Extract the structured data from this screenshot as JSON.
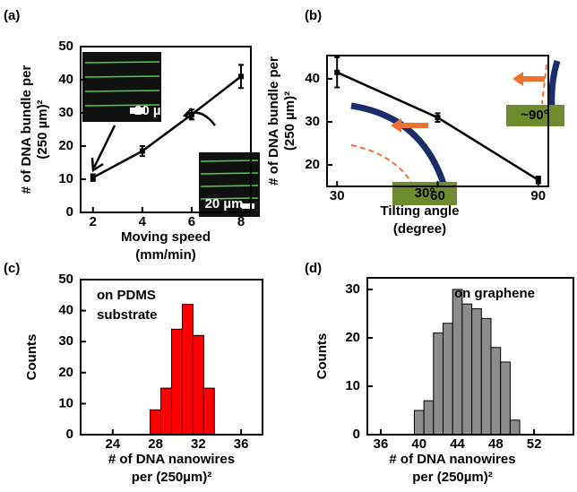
{
  "chart_data": [
    {
      "type": "line",
      "panel": "(a)",
      "ylabel": [
        "# of DNA bundle per",
        "(250 µm)²"
      ],
      "xlabel": [
        "Moving speed",
        "(mm/min)"
      ],
      "x": [
        2,
        4,
        6,
        8
      ],
      "values": [
        10.5,
        18.5,
        29.5,
        41
      ],
      "errors": [
        1,
        1.5,
        1.5,
        3.5
      ],
      "xlim": [
        1.5,
        8.4
      ],
      "xticks": [
        2,
        4,
        6,
        8
      ],
      "ylim": [
        0,
        50
      ],
      "yticks": [
        0,
        10,
        20,
        30,
        40,
        50
      ],
      "annotations": [
        "20 µm",
        "20 µm"
      ],
      "color": "#000000"
    },
    {
      "type": "line",
      "panel": "(b)",
      "ylabel": [
        "# of DNA bundle per",
        "(250 µm)²"
      ],
      "xlabel": [
        "Tilting angle",
        "(degree)"
      ],
      "x": [
        30,
        60,
        90
      ],
      "values": [
        41.5,
        31,
        16.5
      ],
      "errors": [
        3.5,
        1,
        0.8
      ],
      "xlim": [
        27,
        93
      ],
      "xticks": [
        30,
        60,
        90
      ],
      "ylim": [
        15,
        45.4
      ],
      "yticks": [
        20,
        30,
        40
      ],
      "annotations": [
        "30°",
        "~90°"
      ],
      "color": "#000000"
    },
    {
      "type": "histogram",
      "panel": "(c)",
      "ylabel": [
        "Counts"
      ],
      "xlabel": [
        "# of DNA nanowires",
        "per (250µm)²"
      ],
      "bins": [
        27.5,
        28.5,
        29.5,
        30.5,
        31.5,
        32.5,
        33.5
      ],
      "values": [
        8,
        15,
        34,
        42,
        32,
        15
      ],
      "xlim": [
        21,
        38
      ],
      "xticks": [
        24,
        28,
        32,
        36
      ],
      "ylim": [
        0,
        50
      ],
      "yticks": [
        0,
        10,
        20,
        30,
        40,
        50
      ],
      "annotations": [
        "on PDMS",
        "substrate"
      ],
      "color": "#ff0000"
    },
    {
      "type": "histogram",
      "panel": "(d)",
      "ylabel": [
        "Counts"
      ],
      "xlabel": [
        "# of DNA nanowires",
        "per (250µm)²"
      ],
      "bins": [
        39.5,
        40.5,
        41.5,
        42.5,
        43.5,
        44.5,
        45.5,
        46.5,
        47.5,
        48.5,
        49.5,
        50.5
      ],
      "values": [
        5,
        7,
        21,
        23,
        30,
        27,
        26,
        24,
        18,
        15,
        3
      ],
      "xlim": [
        34.6,
        56.1
      ],
      "xticks": [
        36,
        40,
        44,
        48,
        52
      ],
      "ylim": [
        0,
        32.4
      ],
      "yticks": [
        0,
        10,
        20,
        30
      ],
      "annotations": [
        "on graphene"
      ],
      "color": "#8c8c8c"
    }
  ]
}
